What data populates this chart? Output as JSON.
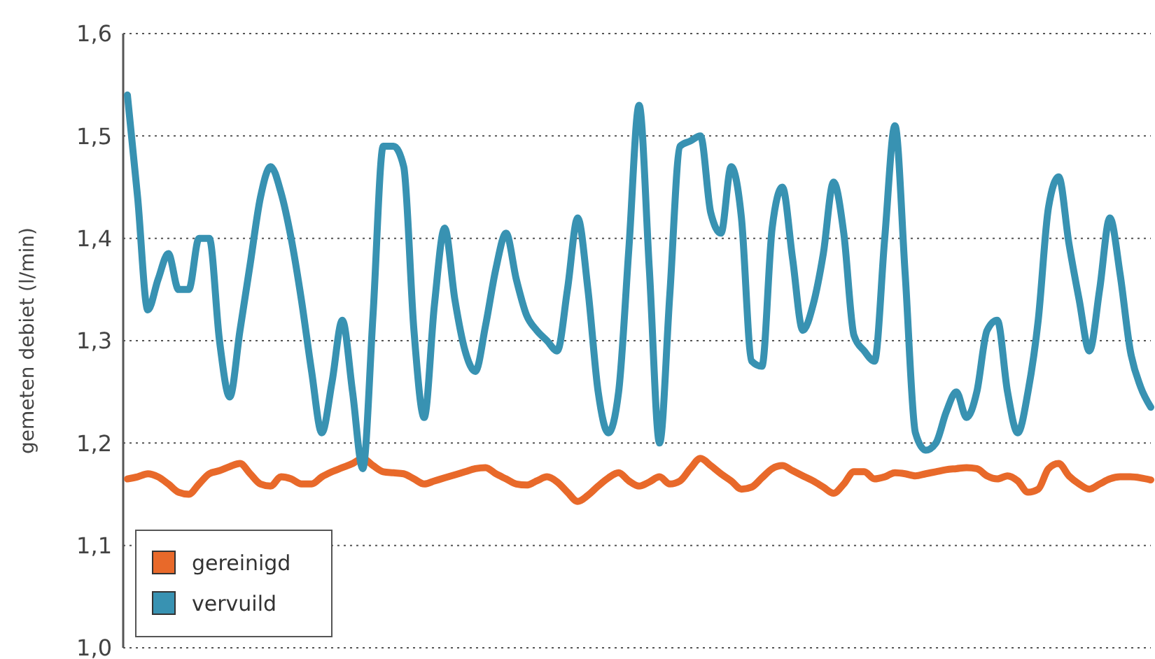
{
  "chart_data": {
    "type": "line",
    "ylabel": "gemeten debiet (l/min)",
    "categories": [
      null,
      null,
      null,
      null,
      null,
      null,
      null,
      null,
      null,
      null,
      null,
      null,
      null,
      null,
      null,
      null,
      null,
      null,
      null,
      null,
      null,
      null,
      null,
      null,
      null,
      null,
      null,
      null,
      null,
      null,
      null,
      null,
      null,
      null,
      null,
      null,
      null,
      null,
      null,
      null,
      null,
      null,
      null,
      null,
      null,
      null,
      null,
      null,
      null,
      null,
      null,
      null,
      null,
      null,
      null,
      null,
      null,
      null,
      null,
      null,
      null,
      null,
      null,
      null,
      null,
      null,
      null,
      null,
      null,
      null,
      null,
      null,
      null,
      null,
      null,
      null,
      null,
      null,
      null,
      null,
      null,
      null,
      null,
      null,
      null,
      null,
      null,
      null,
      null,
      null,
      null,
      null,
      null,
      null,
      null,
      null,
      null,
      null,
      null,
      null,
      null
    ],
    "series": [
      {
        "name": "gereinigd",
        "color": "#e8692a",
        "values": [
          1.165,
          1.167,
          1.17,
          1.167,
          1.16,
          1.152,
          1.15,
          1.16,
          1.17,
          1.173,
          1.177,
          1.18,
          1.17,
          1.16,
          1.158,
          1.167,
          1.165,
          1.16,
          1.16,
          1.167,
          1.172,
          1.176,
          1.18,
          1.185,
          1.178,
          1.172,
          1.171,
          1.17,
          1.165,
          1.16,
          1.163,
          1.166,
          1.169,
          1.172,
          1.175,
          1.176,
          1.17,
          1.165,
          1.16,
          1.159,
          1.163,
          1.167,
          1.162,
          1.152,
          1.143,
          1.149,
          1.158,
          1.166,
          1.171,
          1.163,
          1.158,
          1.162,
          1.167,
          1.16,
          1.163,
          1.175,
          1.185,
          1.178,
          1.17,
          1.163,
          1.155,
          1.157,
          1.166,
          1.175,
          1.178,
          1.173,
          1.168,
          1.163,
          1.157,
          1.151,
          1.16,
          1.172,
          1.172,
          1.165,
          1.167,
          1.171,
          1.17,
          1.168,
          1.17,
          1.172,
          1.174,
          1.175,
          1.176,
          1.175,
          1.168,
          1.165,
          1.168,
          1.163,
          1.152,
          1.155,
          1.175,
          1.18,
          1.168,
          1.16,
          1.155,
          1.16,
          1.165,
          1.167,
          1.167,
          1.166,
          1.164
        ]
      },
      {
        "name": "vervuild",
        "color": "#3892b2",
        "values": [
          1.54,
          1.44,
          1.33,
          1.36,
          1.385,
          1.35,
          1.35,
          1.4,
          1.4,
          1.3,
          1.245,
          1.31,
          1.375,
          1.44,
          1.47,
          1.445,
          1.4,
          1.34,
          1.27,
          1.21,
          1.26,
          1.32,
          1.25,
          1.175,
          1.325,
          1.49,
          1.49,
          1.47,
          1.31,
          1.225,
          1.335,
          1.41,
          1.34,
          1.29,
          1.27,
          1.315,
          1.37,
          1.405,
          1.36,
          1.325,
          1.31,
          1.3,
          1.29,
          1.35,
          1.42,
          1.35,
          1.25,
          1.21,
          1.25,
          1.39,
          1.53,
          1.37,
          1.2,
          1.345,
          1.49,
          1.495,
          1.5,
          1.425,
          1.405,
          1.47,
          1.42,
          1.28,
          1.275,
          1.41,
          1.45,
          1.38,
          1.31,
          1.335,
          1.385,
          1.455,
          1.405,
          1.305,
          1.29,
          1.28,
          1.4,
          1.51,
          1.365,
          1.21,
          1.193,
          1.2,
          1.23,
          1.25,
          1.225,
          1.25,
          1.31,
          1.32,
          1.25,
          1.21,
          1.25,
          1.32,
          1.43,
          1.46,
          1.395,
          1.34,
          1.29,
          1.35,
          1.42,
          1.365,
          1.29,
          1.255,
          1.235
        ]
      }
    ],
    "ylim": [
      1.0,
      1.6
    ],
    "yticks": [
      {
        "value": 1.0,
        "label": "1,0"
      },
      {
        "value": 1.1,
        "label": "1,1"
      },
      {
        "value": 1.2,
        "label": "1,2"
      },
      {
        "value": 1.3,
        "label": "1,3"
      },
      {
        "value": 1.4,
        "label": "1,4"
      },
      {
        "value": 1.5,
        "label": "1,5"
      },
      {
        "value": 1.6,
        "label": "1,6"
      }
    ],
    "grid": "y",
    "legend": "bottom left",
    "marker": "none",
    "line_style": "solid"
  }
}
